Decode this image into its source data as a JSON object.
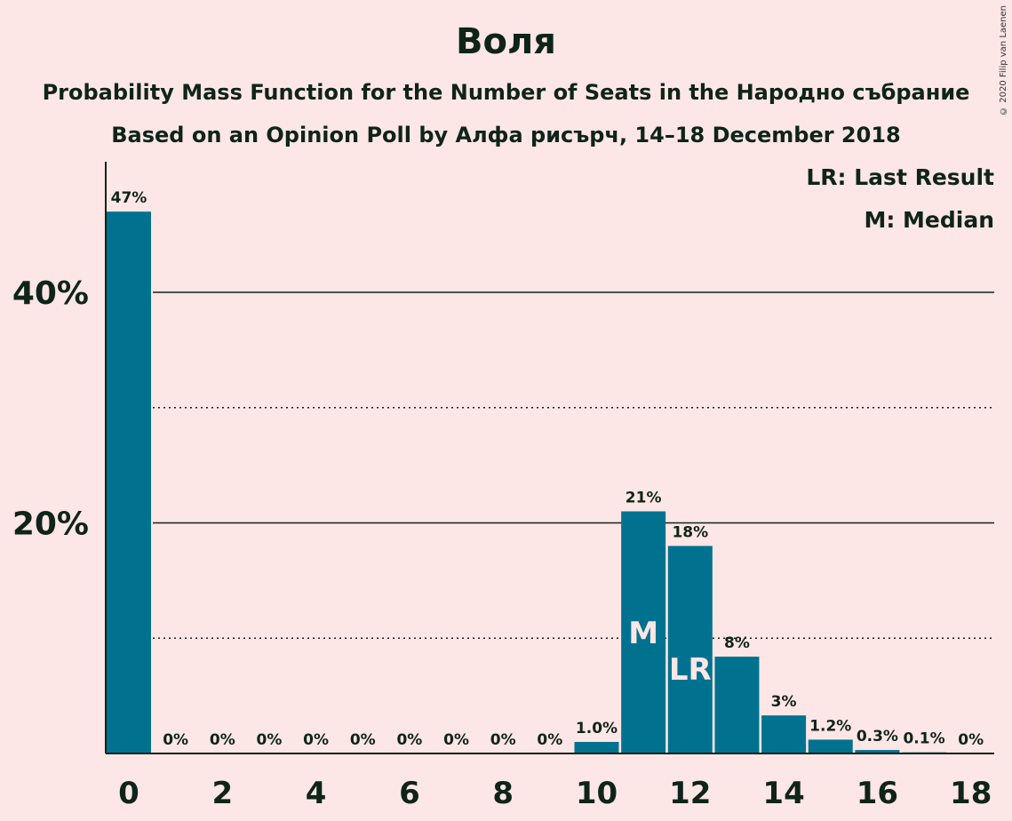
{
  "chart_data": {
    "type": "bar",
    "title": "Воля",
    "subtitle": "Probability Mass Function for the Number of Seats in the Народно събрание",
    "subtitle2": "Based on an Opinion Poll by Алфа рисърч, 14–18 December 2018",
    "copyright": "© 2020 Filip van Laenen",
    "legend": [
      "LR: Last Result",
      "M: Median"
    ],
    "legend_placement": "top-right",
    "categories": [
      0,
      1,
      2,
      3,
      4,
      5,
      6,
      7,
      8,
      9,
      10,
      11,
      12,
      13,
      14,
      15,
      16,
      17,
      18
    ],
    "x_tick_labels": [
      "0",
      "2",
      "4",
      "6",
      "8",
      "10",
      "12",
      "14",
      "16",
      "18"
    ],
    "values": [
      47,
      0,
      0,
      0,
      0,
      0,
      0,
      0,
      0,
      0,
      1.0,
      21,
      18,
      8.4,
      3.3,
      1.2,
      0.3,
      0.1,
      0
    ],
    "data_labels": [
      "47%",
      "0%",
      "0%",
      "0%",
      "0%",
      "0%",
      "0%",
      "0%",
      "0%",
      "0%",
      "1.0%",
      "21%",
      "18%",
      "8%",
      "3%",
      "1.2%",
      "0.3%",
      "0.1%",
      "0%"
    ],
    "y_tick_labels": [
      "20%",
      "40%"
    ],
    "y_ticks": [
      20,
      40
    ],
    "ylim": [
      0,
      51
    ],
    "median_seat": 11,
    "median_label": "M",
    "last_result_seat": 12,
    "last_result_label": "LR",
    "gridlines": {
      "solid": [
        20,
        40
      ],
      "dotted": [
        10,
        30
      ]
    },
    "bar_color": "#00728F",
    "xlabel": "",
    "ylabel": ""
  }
}
